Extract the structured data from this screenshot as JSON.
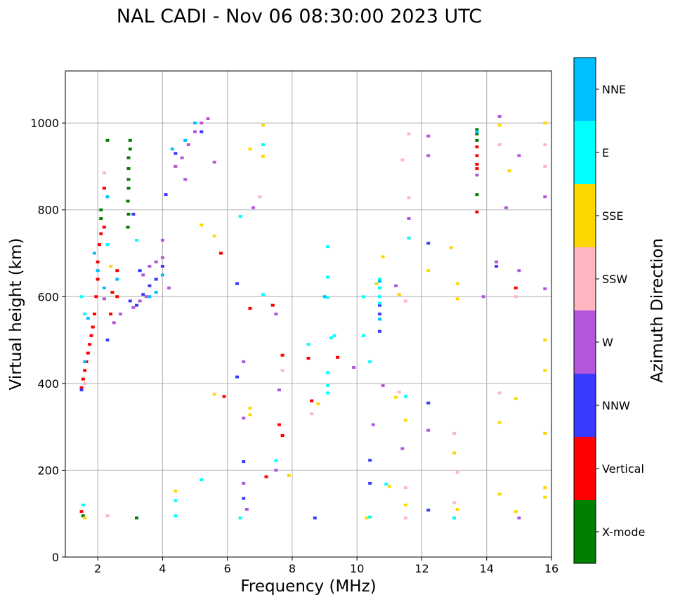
{
  "chart_data": {
    "type": "scatter",
    "title": "NAL CADI - Nov 06 08:30:00 2023 UTC",
    "xlabel": "Frequency (MHz)",
    "ylabel": "Virtual height (km)",
    "xlim": [
      1,
      16
    ],
    "ylim": [
      0,
      1120
    ],
    "xticks": [
      2,
      4,
      6,
      8,
      10,
      12,
      14,
      16
    ],
    "yticks": [
      0,
      200,
      400,
      600,
      800,
      1000
    ],
    "grid": true,
    "colorbar": {
      "label": "Azimuth Direction",
      "categories": [
        {
          "name": "X-mode",
          "color": "#008000"
        },
        {
          "name": "Vertical",
          "color": "#ff0000"
        },
        {
          "name": "NNW",
          "color": "#3a3aff"
        },
        {
          "name": "W",
          "color": "#b455dc"
        },
        {
          "name": "SSW",
          "color": "#ffb6c1"
        },
        {
          "name": "SSE",
          "color": "#ffd700"
        },
        {
          "name": "E",
          "color": "#00ffff"
        },
        {
          "name": "NNE",
          "color": "#00bfff"
        }
      ]
    },
    "series": [
      {
        "name": "X-mode",
        "points": [
          [
            2.93,
            760
          ],
          [
            2.95,
            790
          ],
          [
            2.93,
            820
          ],
          [
            2.95,
            850
          ],
          [
            2.95,
            870
          ],
          [
            2.95,
            895
          ],
          [
            2.95,
            920
          ],
          [
            3.0,
            940
          ],
          [
            3.0,
            960
          ],
          [
            2.3,
            960
          ],
          [
            2.1,
            780
          ],
          [
            2.1,
            800
          ],
          [
            1.55,
            95
          ],
          [
            3.2,
            90
          ],
          [
            13.7,
            985
          ],
          [
            13.7,
            975
          ],
          [
            13.7,
            960
          ],
          [
            13.7,
            835
          ]
        ]
      },
      {
        "name": "Vertical",
        "points": [
          [
            1.5,
            390
          ],
          [
            1.55,
            410
          ],
          [
            1.6,
            430
          ],
          [
            1.65,
            450
          ],
          [
            1.7,
            470
          ],
          [
            1.75,
            490
          ],
          [
            1.8,
            510
          ],
          [
            1.85,
            530
          ],
          [
            1.9,
            560
          ],
          [
            1.95,
            600
          ],
          [
            2.0,
            640
          ],
          [
            2.0,
            680
          ],
          [
            2.05,
            720
          ],
          [
            2.1,
            745
          ],
          [
            2.2,
            760
          ],
          [
            2.2,
            850
          ],
          [
            2.4,
            560
          ],
          [
            2.45,
            610
          ],
          [
            2.6,
            600
          ],
          [
            2.6,
            660
          ],
          [
            1.5,
            105
          ],
          [
            7.2,
            185
          ],
          [
            7.6,
            305
          ],
          [
            7.7,
            280
          ],
          [
            7.7,
            465
          ],
          [
            8.6,
            360
          ],
          [
            8.5,
            458
          ],
          [
            9.4,
            460
          ],
          [
            7.4,
            580
          ],
          [
            6.7,
            573
          ],
          [
            5.8,
            700
          ],
          [
            5.9,
            370
          ],
          [
            13.7,
            945
          ],
          [
            13.7,
            925
          ],
          [
            13.7,
            905
          ],
          [
            13.7,
            895
          ],
          [
            13.7,
            795
          ],
          [
            14.9,
            620
          ]
        ]
      },
      {
        "name": "NNW",
        "points": [
          [
            1.5,
            385
          ],
          [
            2.3,
            500
          ],
          [
            3.0,
            590
          ],
          [
            3.2,
            580
          ],
          [
            3.4,
            605
          ],
          [
            3.6,
            625
          ],
          [
            3.8,
            640
          ],
          [
            4.0,
            670
          ],
          [
            3.3,
            660
          ],
          [
            3.1,
            790
          ],
          [
            4.1,
            835
          ],
          [
            4.4,
            930
          ],
          [
            5.2,
            980
          ],
          [
            6.3,
            415
          ],
          [
            6.3,
            630
          ],
          [
            6.5,
            135
          ],
          [
            6.5,
            220
          ],
          [
            8.7,
            90
          ],
          [
            10.4,
            170
          ],
          [
            10.4,
            223
          ],
          [
            10.7,
            580
          ],
          [
            10.7,
            560
          ],
          [
            10.7,
            520
          ],
          [
            12.2,
            355
          ],
          [
            12.2,
            108
          ],
          [
            12.2,
            723
          ],
          [
            14.3,
            670
          ]
        ]
      },
      {
        "name": "W",
        "points": [
          [
            2.2,
            595
          ],
          [
            2.5,
            540
          ],
          [
            2.7,
            560
          ],
          [
            3.1,
            575
          ],
          [
            3.3,
            590
          ],
          [
            3.5,
            600
          ],
          [
            3.4,
            650
          ],
          [
            3.6,
            670
          ],
          [
            3.8,
            680
          ],
          [
            4.0,
            690
          ],
          [
            4.0,
            730
          ],
          [
            4.2,
            620
          ],
          [
            4.4,
            900
          ],
          [
            4.6,
            920
          ],
          [
            4.8,
            950
          ],
          [
            5.0,
            980
          ],
          [
            5.2,
            1000
          ],
          [
            5.4,
            1010
          ],
          [
            4.7,
            870
          ],
          [
            5.6,
            910
          ],
          [
            6.8,
            805
          ],
          [
            7.5,
            560
          ],
          [
            7.6,
            385
          ],
          [
            6.5,
            170
          ],
          [
            6.5,
            320
          ],
          [
            6.5,
            450
          ],
          [
            6.6,
            110
          ],
          [
            7.5,
            200
          ],
          [
            9.9,
            437
          ],
          [
            10.5,
            305
          ],
          [
            10.8,
            395
          ],
          [
            11.2,
            625
          ],
          [
            11.6,
            780
          ],
          [
            11.4,
            250
          ],
          [
            12.2,
            970
          ],
          [
            12.2,
            925
          ],
          [
            12.2,
            292
          ],
          [
            13.7,
            880
          ],
          [
            13.9,
            600
          ],
          [
            14.3,
            680
          ],
          [
            14.4,
            1015
          ],
          [
            14.6,
            805
          ],
          [
            15.0,
            925
          ],
          [
            15.0,
            660
          ],
          [
            15.0,
            90
          ],
          [
            15.8,
            830
          ],
          [
            15.8,
            618
          ]
        ]
      },
      {
        "name": "SSW",
        "points": [
          [
            1.6,
            400
          ],
          [
            2.2,
            885
          ],
          [
            2.3,
            95
          ],
          [
            7.0,
            830
          ],
          [
            7.7,
            430
          ],
          [
            8.6,
            330
          ],
          [
            11.3,
            380
          ],
          [
            11.4,
            915
          ],
          [
            11.5,
            590
          ],
          [
            11.6,
            828
          ],
          [
            11.6,
            975
          ],
          [
            11.5,
            160
          ],
          [
            11.5,
            90
          ],
          [
            13.0,
            285
          ],
          [
            13.0,
            125
          ],
          [
            13.1,
            195
          ],
          [
            14.4,
            950
          ],
          [
            14.4,
            378
          ],
          [
            14.9,
            600
          ],
          [
            15.8,
            950
          ],
          [
            15.8,
            900
          ]
        ]
      },
      {
        "name": "SSE",
        "points": [
          [
            1.6,
            90
          ],
          [
            2.4,
            670
          ],
          [
            4.4,
            152
          ],
          [
            5.6,
            375
          ],
          [
            5.2,
            765
          ],
          [
            5.6,
            740
          ],
          [
            6.7,
            940
          ],
          [
            6.7,
            343
          ],
          [
            6.7,
            328
          ],
          [
            7.1,
            995
          ],
          [
            7.1,
            923
          ],
          [
            7.9,
            188
          ],
          [
            8.8,
            353
          ],
          [
            10.3,
            90
          ],
          [
            10.6,
            630
          ],
          [
            10.8,
            692
          ],
          [
            11.0,
            163
          ],
          [
            11.2,
            368
          ],
          [
            11.3,
            605
          ],
          [
            11.5,
            315
          ],
          [
            11.5,
            120
          ],
          [
            12.2,
            660
          ],
          [
            12.9,
            713
          ],
          [
            13.1,
            630
          ],
          [
            13.1,
            595
          ],
          [
            13.0,
            240
          ],
          [
            13.1,
            110
          ],
          [
            14.4,
            995
          ],
          [
            14.4,
            145
          ],
          [
            14.4,
            310
          ],
          [
            14.7,
            890
          ],
          [
            14.9,
            365
          ],
          [
            14.9,
            105
          ],
          [
            15.8,
            1000
          ],
          [
            15.8,
            500
          ],
          [
            15.8,
            430
          ],
          [
            15.8,
            285
          ],
          [
            15.8,
            160
          ],
          [
            15.8,
            138
          ]
        ]
      },
      {
        "name": "E",
        "points": [
          [
            1.5,
            600
          ],
          [
            1.6,
            560
          ],
          [
            1.55,
            120
          ],
          [
            2.3,
            720
          ],
          [
            3.2,
            730
          ],
          [
            4.4,
            130
          ],
          [
            4.4,
            95
          ],
          [
            5.2,
            178
          ],
          [
            6.4,
            785
          ],
          [
            6.4,
            90
          ],
          [
            7.1,
            950
          ],
          [
            7.1,
            605
          ],
          [
            7.5,
            222
          ],
          [
            8.5,
            490
          ],
          [
            9.1,
            598
          ],
          [
            9.1,
            645
          ],
          [
            9.1,
            715
          ],
          [
            9.1,
            425
          ],
          [
            9.1,
            395
          ],
          [
            9.1,
            378
          ],
          [
            9.2,
            505
          ],
          [
            9.3,
            510
          ],
          [
            10.2,
            600
          ],
          [
            10.2,
            510
          ],
          [
            10.4,
            92
          ],
          [
            10.4,
            450
          ],
          [
            10.7,
            640
          ],
          [
            10.7,
            620
          ],
          [
            10.7,
            585
          ],
          [
            10.7,
            600
          ],
          [
            10.9,
            168
          ],
          [
            11.5,
            370
          ],
          [
            11.6,
            735
          ],
          [
            13.0,
            90
          ]
        ]
      },
      {
        "name": "NNE",
        "points": [
          [
            1.6,
            450
          ],
          [
            1.7,
            550
          ],
          [
            1.9,
            700
          ],
          [
            2.0,
            660
          ],
          [
            2.2,
            620
          ],
          [
            2.3,
            830
          ],
          [
            2.6,
            640
          ],
          [
            3.6,
            600
          ],
          [
            3.8,
            610
          ],
          [
            4.0,
            650
          ],
          [
            4.3,
            940
          ],
          [
            4.7,
            960
          ],
          [
            5.0,
            1000
          ],
          [
            9.0,
            600
          ],
          [
            10.7,
            635
          ],
          [
            10.7,
            548
          ],
          [
            13.7,
            980
          ]
        ]
      }
    ]
  }
}
